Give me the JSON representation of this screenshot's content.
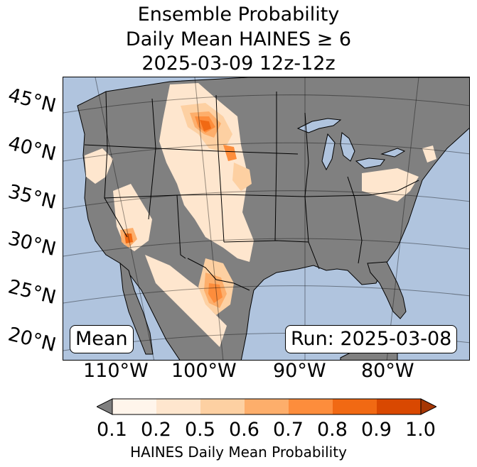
{
  "title": {
    "line1": "Ensemble Probability",
    "line2": "Daily Mean HAINES ≥ 6",
    "line3": "2025-03-09 12z-12z"
  },
  "map": {
    "lat_labels": [
      "45°N",
      "40°N",
      "35°N",
      "30°N",
      "25°N",
      "20°N"
    ],
    "lon_labels": [
      "110°W",
      "100°W",
      "90°W",
      "80°W"
    ],
    "left_box": "Mean",
    "right_box": "Run: 2025-03-08"
  },
  "colorbar": {
    "ticks": [
      "0.1",
      "0.2",
      "0.5",
      "0.6",
      "0.7",
      "0.8",
      "0.9",
      "1.0"
    ],
    "colors": [
      "#fff5eb",
      "#fee6ce",
      "#fdd0a2",
      "#fdae6b",
      "#fd8d3c",
      "#f16913",
      "#d94801",
      "#a63603"
    ],
    "under_color": "#7f7f7f",
    "label": "HAINES Daily Mean Probability"
  },
  "colors": {
    "ocean": "#b0c4de",
    "land": "#808080",
    "borders": "#000000"
  }
}
